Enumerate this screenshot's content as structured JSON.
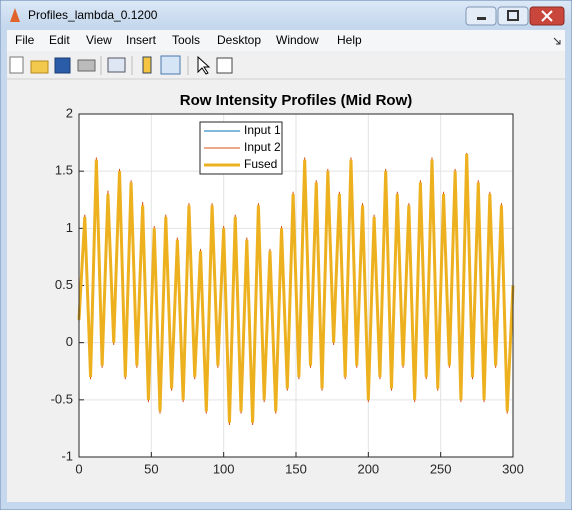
{
  "window": {
    "title": "Profiles_lambda_0.1200"
  },
  "menu": [
    "File",
    "Edit",
    "View",
    "Insert",
    "Tools",
    "Desktop",
    "Window",
    "Help"
  ],
  "chart_data": {
    "type": "line",
    "title": "Row Intensity Profiles (Mid Row)",
    "x": [
      0,
      4,
      8,
      12,
      16,
      20,
      24,
      28,
      32,
      36,
      40,
      44,
      48,
      52,
      56,
      60,
      64,
      68,
      72,
      76,
      80,
      84,
      88,
      92,
      96,
      100,
      104,
      108,
      112,
      116,
      120,
      124,
      128,
      132,
      136,
      140,
      144,
      148,
      152,
      156,
      160,
      164,
      168,
      172,
      176,
      180,
      184,
      188,
      192,
      196,
      200,
      204,
      208,
      212,
      216,
      220,
      224,
      228,
      232,
      236,
      240,
      244,
      248,
      252,
      256,
      260,
      264,
      268,
      272,
      276,
      280,
      284,
      288,
      292,
      296,
      300
    ],
    "series": [
      {
        "name": "Input 1",
        "color": "#0072bd",
        "values": [
          0.18,
          1.08,
          -0.28,
          1.55,
          -0.18,
          1.27,
          0.02,
          1.46,
          -0.27,
          1.38,
          -0.18,
          1.17,
          -0.47,
          0.98,
          -0.57,
          1.07,
          -0.38,
          0.88,
          -0.47,
          1.17,
          -0.28,
          0.78,
          -0.57,
          1.17,
          -0.18,
          0.97,
          -0.67,
          1.07,
          -0.57,
          0.87,
          -0.67,
          1.17,
          -0.47,
          0.78,
          -0.57,
          0.97,
          -0.38,
          1.27,
          -0.28,
          1.55,
          -0.18,
          1.37,
          -0.38,
          1.46,
          0.02,
          1.27,
          -0.28,
          1.55,
          -0.18,
          1.17,
          -0.47,
          1.08,
          -0.28,
          1.46,
          -0.38,
          1.27,
          -0.18,
          1.17,
          -0.47,
          1.37,
          -0.28,
          1.55,
          -0.38,
          1.27,
          -0.18,
          1.46,
          -0.47,
          1.6,
          -0.28,
          1.37,
          -0.47,
          1.27,
          -0.18,
          1.17,
          -0.57,
          0.48
        ]
      },
      {
        "name": "Input 2",
        "color": "#d95319",
        "values": [
          0.22,
          1.12,
          -0.32,
          1.62,
          -0.22,
          1.33,
          -0.02,
          1.52,
          -0.32,
          1.42,
          -0.22,
          1.23,
          -0.52,
          1.02,
          -0.62,
          1.12,
          -0.42,
          0.92,
          -0.52,
          1.22,
          -0.32,
          0.82,
          -0.62,
          1.22,
          -0.22,
          1.02,
          -0.72,
          1.12,
          -0.62,
          0.92,
          -0.72,
          1.22,
          -0.52,
          0.82,
          -0.62,
          1.02,
          -0.42,
          1.32,
          -0.32,
          1.62,
          -0.22,
          1.42,
          -0.42,
          1.52,
          -0.02,
          1.32,
          -0.32,
          1.62,
          -0.22,
          1.22,
          -0.52,
          1.12,
          -0.32,
          1.52,
          -0.42,
          1.32,
          -0.22,
          1.22,
          -0.52,
          1.42,
          -0.32,
          1.62,
          -0.42,
          1.32,
          -0.22,
          1.52,
          -0.52,
          1.66,
          -0.32,
          1.42,
          -0.52,
          1.32,
          -0.22,
          1.22,
          -0.62,
          0.52
        ]
      },
      {
        "name": "Fused",
        "color": "#edb120",
        "values": [
          0.2,
          1.1,
          -0.3,
          1.6,
          -0.2,
          1.3,
          0.0,
          1.5,
          -0.3,
          1.4,
          -0.2,
          1.2,
          -0.5,
          1.0,
          -0.6,
          1.1,
          -0.4,
          0.9,
          -0.5,
          1.2,
          -0.3,
          0.8,
          -0.6,
          1.2,
          -0.2,
          1.0,
          -0.7,
          1.1,
          -0.6,
          0.9,
          -0.7,
          1.2,
          -0.5,
          0.8,
          -0.6,
          1.0,
          -0.4,
          1.3,
          -0.3,
          1.6,
          -0.2,
          1.4,
          -0.4,
          1.5,
          0.0,
          1.3,
          -0.3,
          1.6,
          -0.2,
          1.2,
          -0.5,
          1.1,
          -0.3,
          1.5,
          -0.4,
          1.3,
          -0.2,
          1.2,
          -0.5,
          1.4,
          -0.3,
          1.6,
          -0.4,
          1.3,
          -0.2,
          1.5,
          -0.5,
          1.65,
          -0.3,
          1.4,
          -0.5,
          1.3,
          -0.2,
          1.2,
          -0.6,
          0.5
        ]
      }
    ],
    "xlim": [
      0,
      300
    ],
    "ylim": [
      -1,
      2
    ],
    "xticks": [
      0,
      50,
      100,
      150,
      200,
      250,
      300
    ],
    "yticks": [
      -1,
      -0.5,
      0,
      0.5,
      1,
      1.5,
      2
    ],
    "grid": true,
    "legend": "top"
  }
}
